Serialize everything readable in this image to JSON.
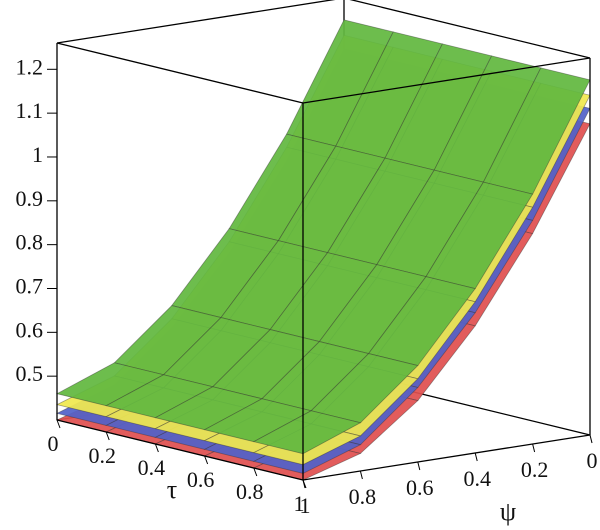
{
  "chart_data": {
    "type": "surface",
    "x_label": "τ",
    "y_label": "ψ",
    "x": [
      0,
      0.2,
      0.4,
      0.6,
      0.8,
      1
    ],
    "y": [
      0,
      0.2,
      0.4,
      0.6,
      0.8,
      1
    ],
    "xlim": [
      0,
      1
    ],
    "ylim": [
      0,
      1
    ],
    "zlim": [
      0.4,
      1.26
    ],
    "xticks": [
      0,
      0.2,
      0.4,
      0.6,
      0.8,
      1
    ],
    "yticks": [
      0,
      0.2,
      0.4,
      0.6,
      0.8,
      1
    ],
    "zticks": [
      0.5,
      0.6,
      0.7,
      0.8,
      0.9,
      1.0,
      1.1,
      1.2
    ],
    "series": [
      {
        "color": "#e05050",
        "values": [
          [
            1.11,
            1.11,
            1.11,
            1.11,
            1.11,
            1.11
          ],
          [
            0.88,
            0.88,
            0.88,
            0.88,
            0.88,
            0.88
          ],
          [
            0.69,
            0.69,
            0.69,
            0.69,
            0.69,
            0.69
          ],
          [
            0.54,
            0.54,
            0.54,
            0.54,
            0.54,
            0.54
          ],
          [
            0.44,
            0.44,
            0.44,
            0.44,
            0.44,
            0.44
          ],
          [
            0.4,
            0.4,
            0.4,
            0.4,
            0.4,
            0.4
          ]
        ]
      },
      {
        "color": "#5262c8",
        "values": [
          [
            1.145,
            1.145,
            1.145,
            1.145,
            1.145,
            1.145
          ],
          [
            0.91,
            0.91,
            0.91,
            0.91,
            0.91,
            0.91
          ],
          [
            0.72,
            0.72,
            0.72,
            0.72,
            0.72,
            0.72
          ],
          [
            0.57,
            0.57,
            0.57,
            0.57,
            0.57,
            0.57
          ],
          [
            0.46,
            0.46,
            0.46,
            0.46,
            0.46,
            0.46
          ],
          [
            0.415,
            0.415,
            0.415,
            0.415,
            0.415,
            0.415
          ]
        ]
      },
      {
        "color": "#f0e850",
        "values": [
          [
            1.175,
            1.175,
            1.175,
            1.175,
            1.175,
            1.175
          ],
          [
            0.94,
            0.94,
            0.94,
            0.94,
            0.94,
            0.94
          ],
          [
            0.745,
            0.745,
            0.745,
            0.745,
            0.745,
            0.745
          ],
          [
            0.59,
            0.59,
            0.59,
            0.59,
            0.59,
            0.59
          ],
          [
            0.48,
            0.48,
            0.48,
            0.48,
            0.48,
            0.48
          ],
          [
            0.435,
            0.435,
            0.435,
            0.435,
            0.435,
            0.435
          ]
        ]
      },
      {
        "color": "#62b840",
        "values": [
          [
            1.21,
            1.21,
            1.21,
            1.21,
            1.21,
            1.21
          ],
          [
            0.97,
            0.97,
            0.97,
            0.97,
            0.97,
            0.97
          ],
          [
            0.775,
            0.775,
            0.775,
            0.775,
            0.775,
            0.775
          ],
          [
            0.62,
            0.62,
            0.62,
            0.62,
            0.62,
            0.62
          ],
          [
            0.51,
            0.51,
            0.51,
            0.51,
            0.51,
            0.51
          ],
          [
            0.46,
            0.46,
            0.46,
            0.46,
            0.46,
            0.46
          ]
        ]
      }
    ]
  }
}
